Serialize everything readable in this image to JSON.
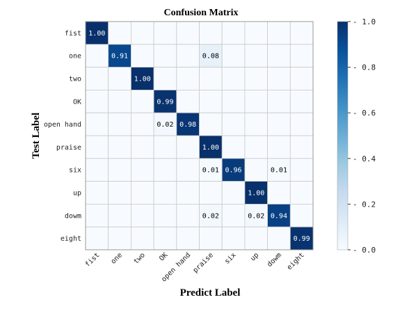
{
  "chart_data": {
    "type": "heatmap",
    "title": "Confusion Matrix",
    "xlabel": "Predict Label",
    "ylabel": "Test Label",
    "x_categories": [
      "fist",
      "one",
      "two",
      "OK",
      "open hand",
      "praise",
      "six",
      "up",
      "dowm",
      "eight"
    ],
    "y_categories": [
      "fist",
      "one",
      "two",
      "OK",
      "open hand",
      "praise",
      "six",
      "up",
      "dowm",
      "eight"
    ],
    "values": [
      [
        1.0,
        0,
        0,
        0,
        0,
        0,
        0,
        0,
        0,
        0
      ],
      [
        0,
        0.91,
        0,
        0,
        0,
        0.08,
        0,
        0,
        0,
        0
      ],
      [
        0,
        0,
        1.0,
        0,
        0,
        0,
        0,
        0,
        0,
        0
      ],
      [
        0,
        0,
        0,
        0.99,
        0,
        0,
        0,
        0,
        0,
        0
      ],
      [
        0,
        0,
        0,
        0.02,
        0.98,
        0,
        0,
        0,
        0,
        0
      ],
      [
        0,
        0,
        0,
        0,
        0,
        1.0,
        0,
        0,
        0,
        0
      ],
      [
        0,
        0,
        0,
        0,
        0,
        0.01,
        0.96,
        0,
        0.01,
        0
      ],
      [
        0,
        0,
        0,
        0,
        0,
        0,
        0,
        1.0,
        0,
        0
      ],
      [
        0,
        0,
        0,
        0,
        0,
        0.02,
        0,
        0.02,
        0.94,
        0
      ],
      [
        0,
        0,
        0,
        0,
        0,
        0,
        0,
        0,
        0,
        0.99
      ]
    ],
    "colorbar": {
      "min": 0.0,
      "max": 1.0,
      "ticks": [
        "0.0",
        "0.2",
        "0.4",
        "0.6",
        "0.8",
        "1.0"
      ],
      "colormap": "Blues"
    },
    "grid": true
  }
}
